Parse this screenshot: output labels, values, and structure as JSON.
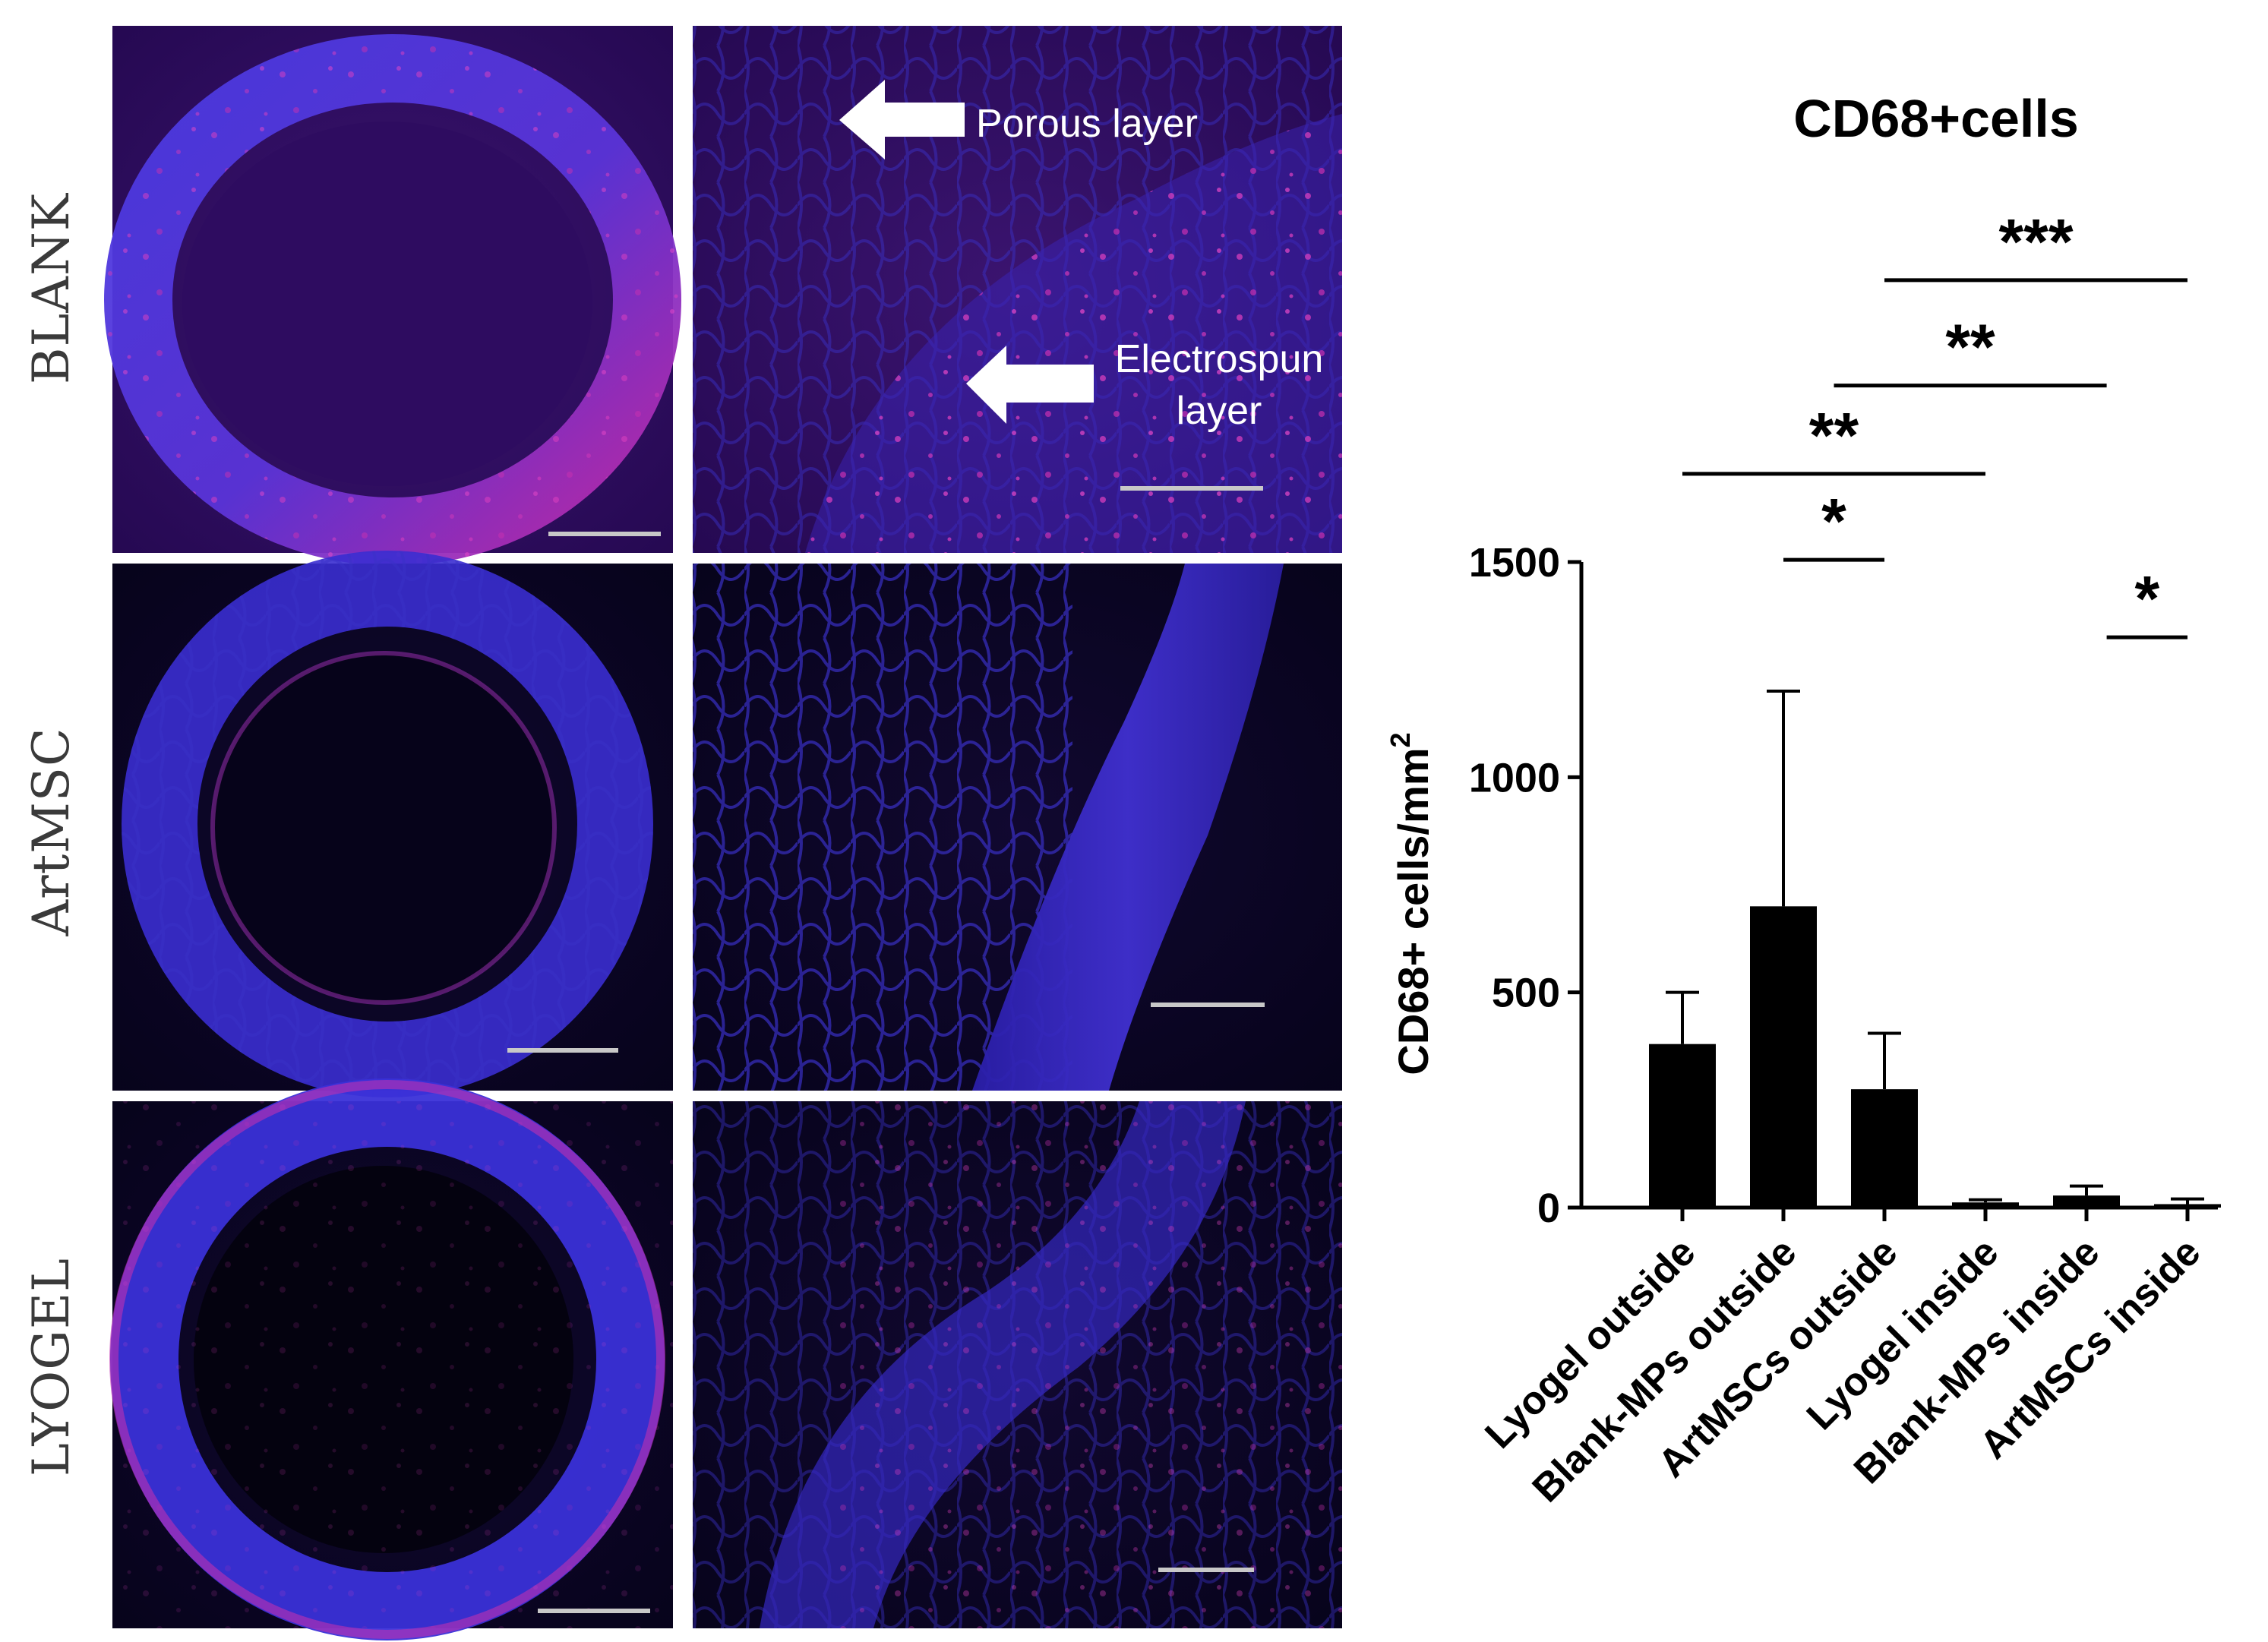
{
  "rows": [
    {
      "label": "BLANK"
    },
    {
      "label": "ArtMSC"
    },
    {
      "label": "LYOGEL"
    }
  ],
  "annotations": {
    "porous": "Porous layer",
    "electrospun_line1": "Electrospun",
    "electrospun_line2": "layer"
  },
  "colors": {
    "tissue_blue": "#3a2ed0",
    "tissue_magenta": "#d030b0",
    "background_blank": "#2a0a55",
    "background_dark": "#0a0420",
    "scale_bar": "#c8c8c8"
  },
  "chart_data": {
    "type": "bar",
    "title": "CD68+cells",
    "ylabel": "CD68+ cells/mm",
    "ylabel_superscript": "2",
    "ylim": [
      0,
      1500
    ],
    "yticks": [
      0,
      500,
      1000,
      1500
    ],
    "categories": [
      "Lyogel outside",
      "Blank-MPs outside",
      "ArtMSCs outside",
      "Lyogel inside",
      "Blank-MPs inside",
      "ArtMSCs inside"
    ],
    "values": [
      380,
      700,
      275,
      12,
      28,
      8
    ],
    "errors": [
      120,
      500,
      130,
      6,
      22,
      12
    ],
    "significance": [
      {
        "from": 1,
        "to": 2,
        "label": "*",
        "y": 1505
      },
      {
        "from": 0,
        "to": 3,
        "label": "**",
        "y": 1705
      },
      {
        "from": 1.5,
        "to": 4.2,
        "label": "**",
        "y": 1910
      },
      {
        "from": 2,
        "to": 5,
        "label": "***",
        "y": 2155
      },
      {
        "from": 4.2,
        "to": 5,
        "label": "*",
        "y": 1325
      }
    ],
    "grid": false,
    "legend": false
  }
}
